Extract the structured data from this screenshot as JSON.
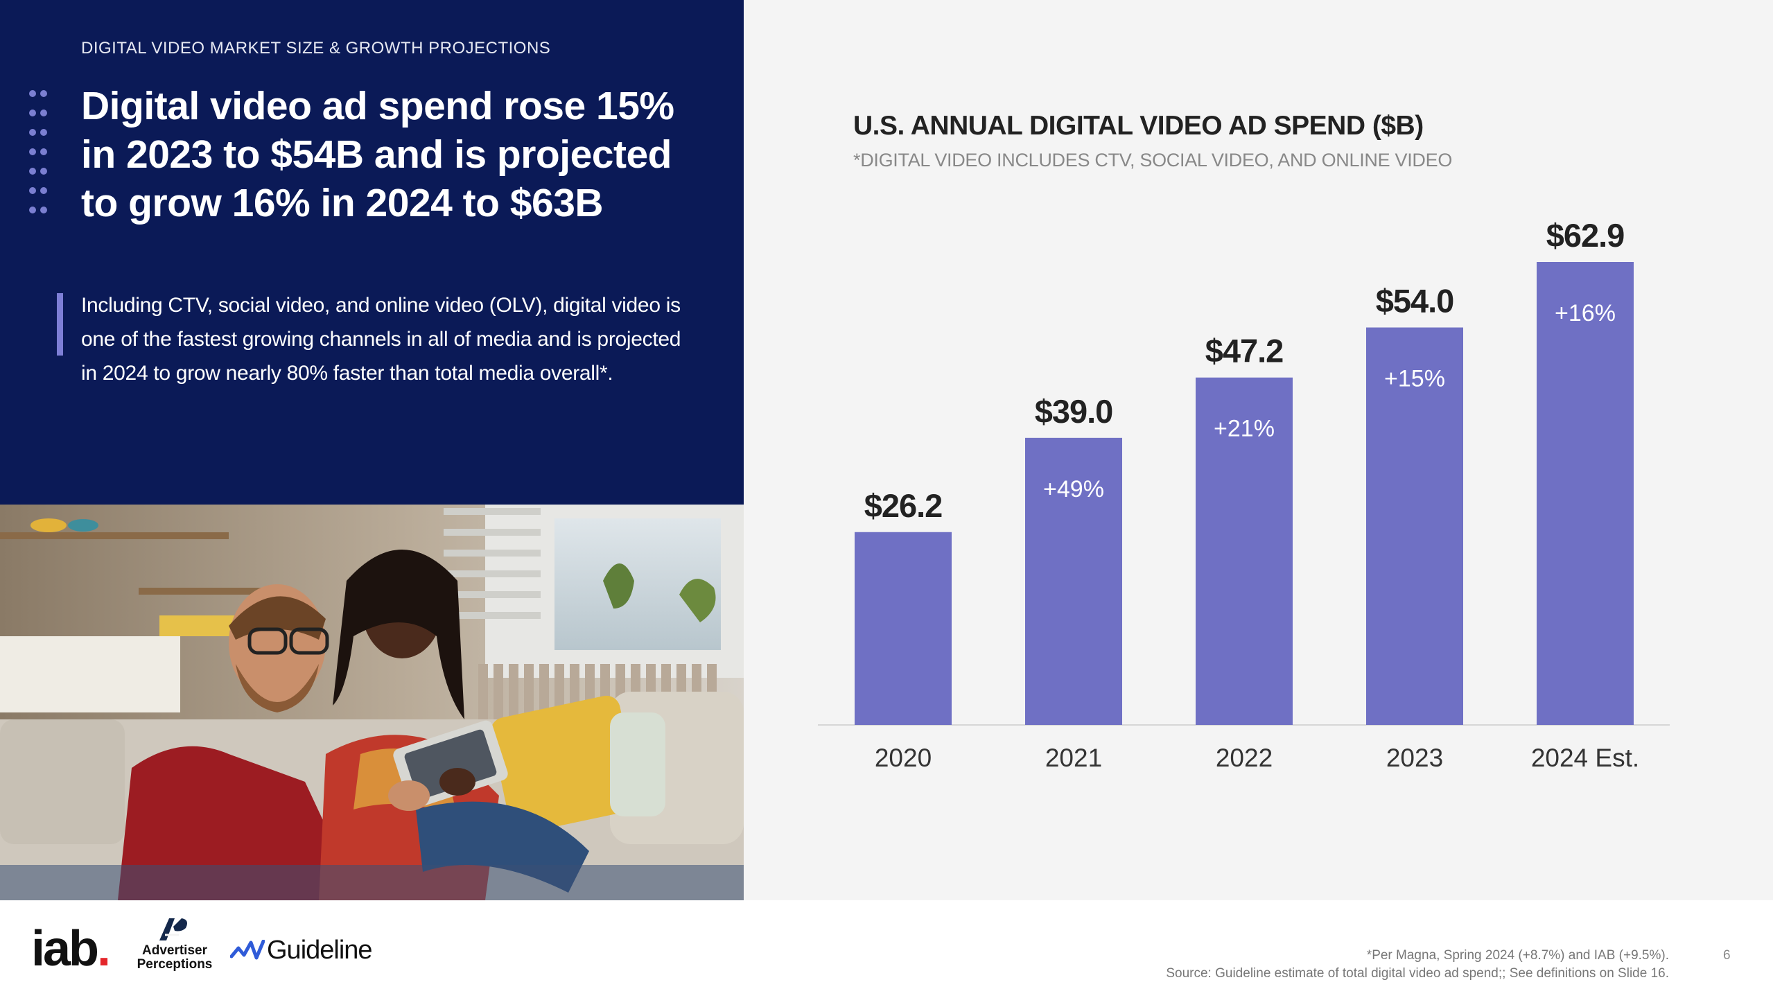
{
  "slide": {
    "eyebrow": "DIGITAL VIDEO MARKET SIZE & GROWTH PROJECTIONS",
    "headline": "Digital video ad spend rose 15% in 2023 to $54B and is projected to grow 16% in 2024 to $63B",
    "body": "Including CTV, social video, and online video (OLV), digital video is one of the fastest growing channels in all of media and is projected in 2024 to grow nearly 80% faster than total media overall*.",
    "page_number": "6"
  },
  "footer": {
    "logos": {
      "iab": "iab",
      "iab_dot": ".",
      "advertiser_perceptions_line1": "Advertiser",
      "advertiser_perceptions_line2": "Perceptions",
      "guideline": "Guideline"
    },
    "footnote_line1": "*Per Magna,  Spring 2024  (+8.7%) and IAB (+9.5%).",
    "footnote_line2": "Source: Guideline estimate of total digital video ad spend;; See definitions on Slide 16."
  },
  "colors": {
    "navy": "#0b1a57",
    "bar": "#6f70c4",
    "accent": "#7e7fd6",
    "panel_gray": "#f4f4f4"
  },
  "chart_data": {
    "type": "bar",
    "title": "U.S. ANNUAL DIGITAL VIDEO AD SPEND ($B)",
    "subtitle": "*DIGITAL VIDEO INCLUDES CTV, SOCIAL VIDEO, AND ONLINE VIDEO",
    "categories": [
      "2020",
      "2021",
      "2022",
      "2023",
      "2024 Est."
    ],
    "values": [
      26.2,
      39.0,
      47.2,
      54.0,
      62.9
    ],
    "value_labels": [
      "$26.2",
      "$39.0",
      "$47.2",
      "$54.0",
      "$62.9"
    ],
    "growth_labels": [
      "",
      "+49%",
      "+21%",
      "+15%",
      "+16%"
    ],
    "xlabel": "",
    "ylabel": "",
    "ylim": [
      0,
      62.9
    ],
    "grid": false,
    "legend": "none"
  }
}
